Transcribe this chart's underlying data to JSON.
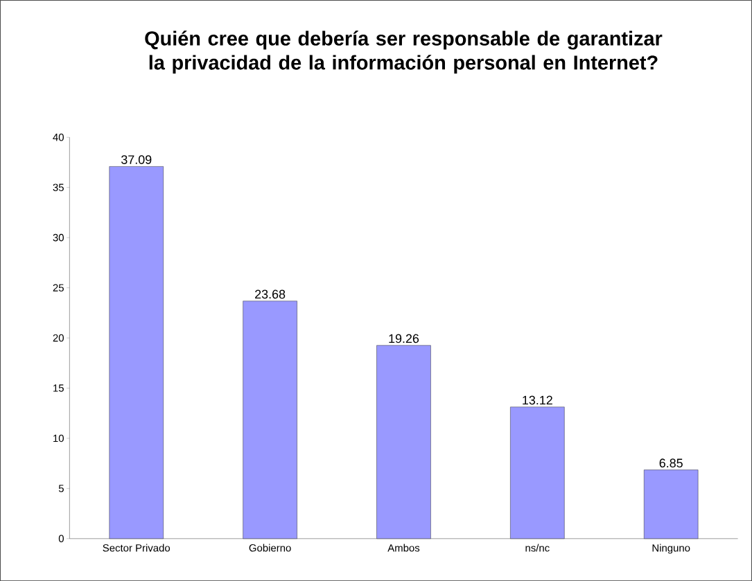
{
  "chart_data": {
    "type": "bar",
    "title": "Quién cree que debería ser responsable de garantizar la privacidad de la información personal en Internet?",
    "categories": [
      "Sector Privado",
      "Gobierno",
      "Ambos",
      "ns/nc",
      "Ninguno"
    ],
    "values": [
      37.09,
      23.68,
      19.26,
      13.12,
      6.85
    ],
    "color": "#9999ff",
    "ylim": [
      0,
      40
    ],
    "yticks": [
      0,
      5,
      10,
      15,
      20,
      25,
      30,
      35,
      40
    ],
    "data_labels": true
  }
}
